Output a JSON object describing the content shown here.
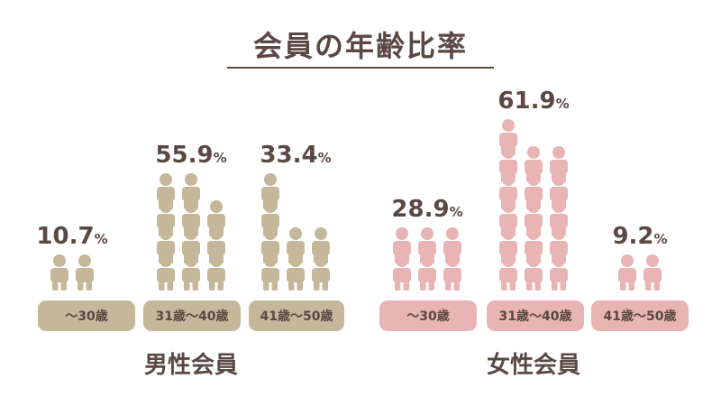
{
  "title": "会員の年齢比率",
  "colors": {
    "male": "#c5b89a",
    "female": "#e8b4b4",
    "text": "#5a4843",
    "female_pill": "#e8b4b4"
  },
  "chart_data": [
    {
      "type": "bar",
      "series_label": "男性会員",
      "color": "#c5b89a",
      "categories": [
        "～30歳",
        "31歳～40歳",
        "41歳～50歳"
      ],
      "values": [
        10.7,
        55.9,
        33.4
      ],
      "value_labels": [
        "10.7",
        "55.9",
        "33.4"
      ],
      "unit": "%",
      "icon_columns": [
        [
          1,
          1
        ],
        [
          4,
          4,
          3
        ],
        [
          4,
          2,
          2
        ]
      ]
    },
    {
      "type": "bar",
      "series_label": "女性会員",
      "color": "#e8b4b4",
      "categories": [
        "～30歳",
        "31歳～40歳",
        "41歳～50歳"
      ],
      "values": [
        28.9,
        61.9,
        9.2
      ],
      "value_labels": [
        "28.9",
        "61.9",
        "9.2"
      ],
      "unit": "%",
      "icon_columns": [
        [
          2,
          2,
          2
        ],
        [
          6,
          5,
          5
        ],
        [
          1,
          1
        ]
      ]
    }
  ]
}
